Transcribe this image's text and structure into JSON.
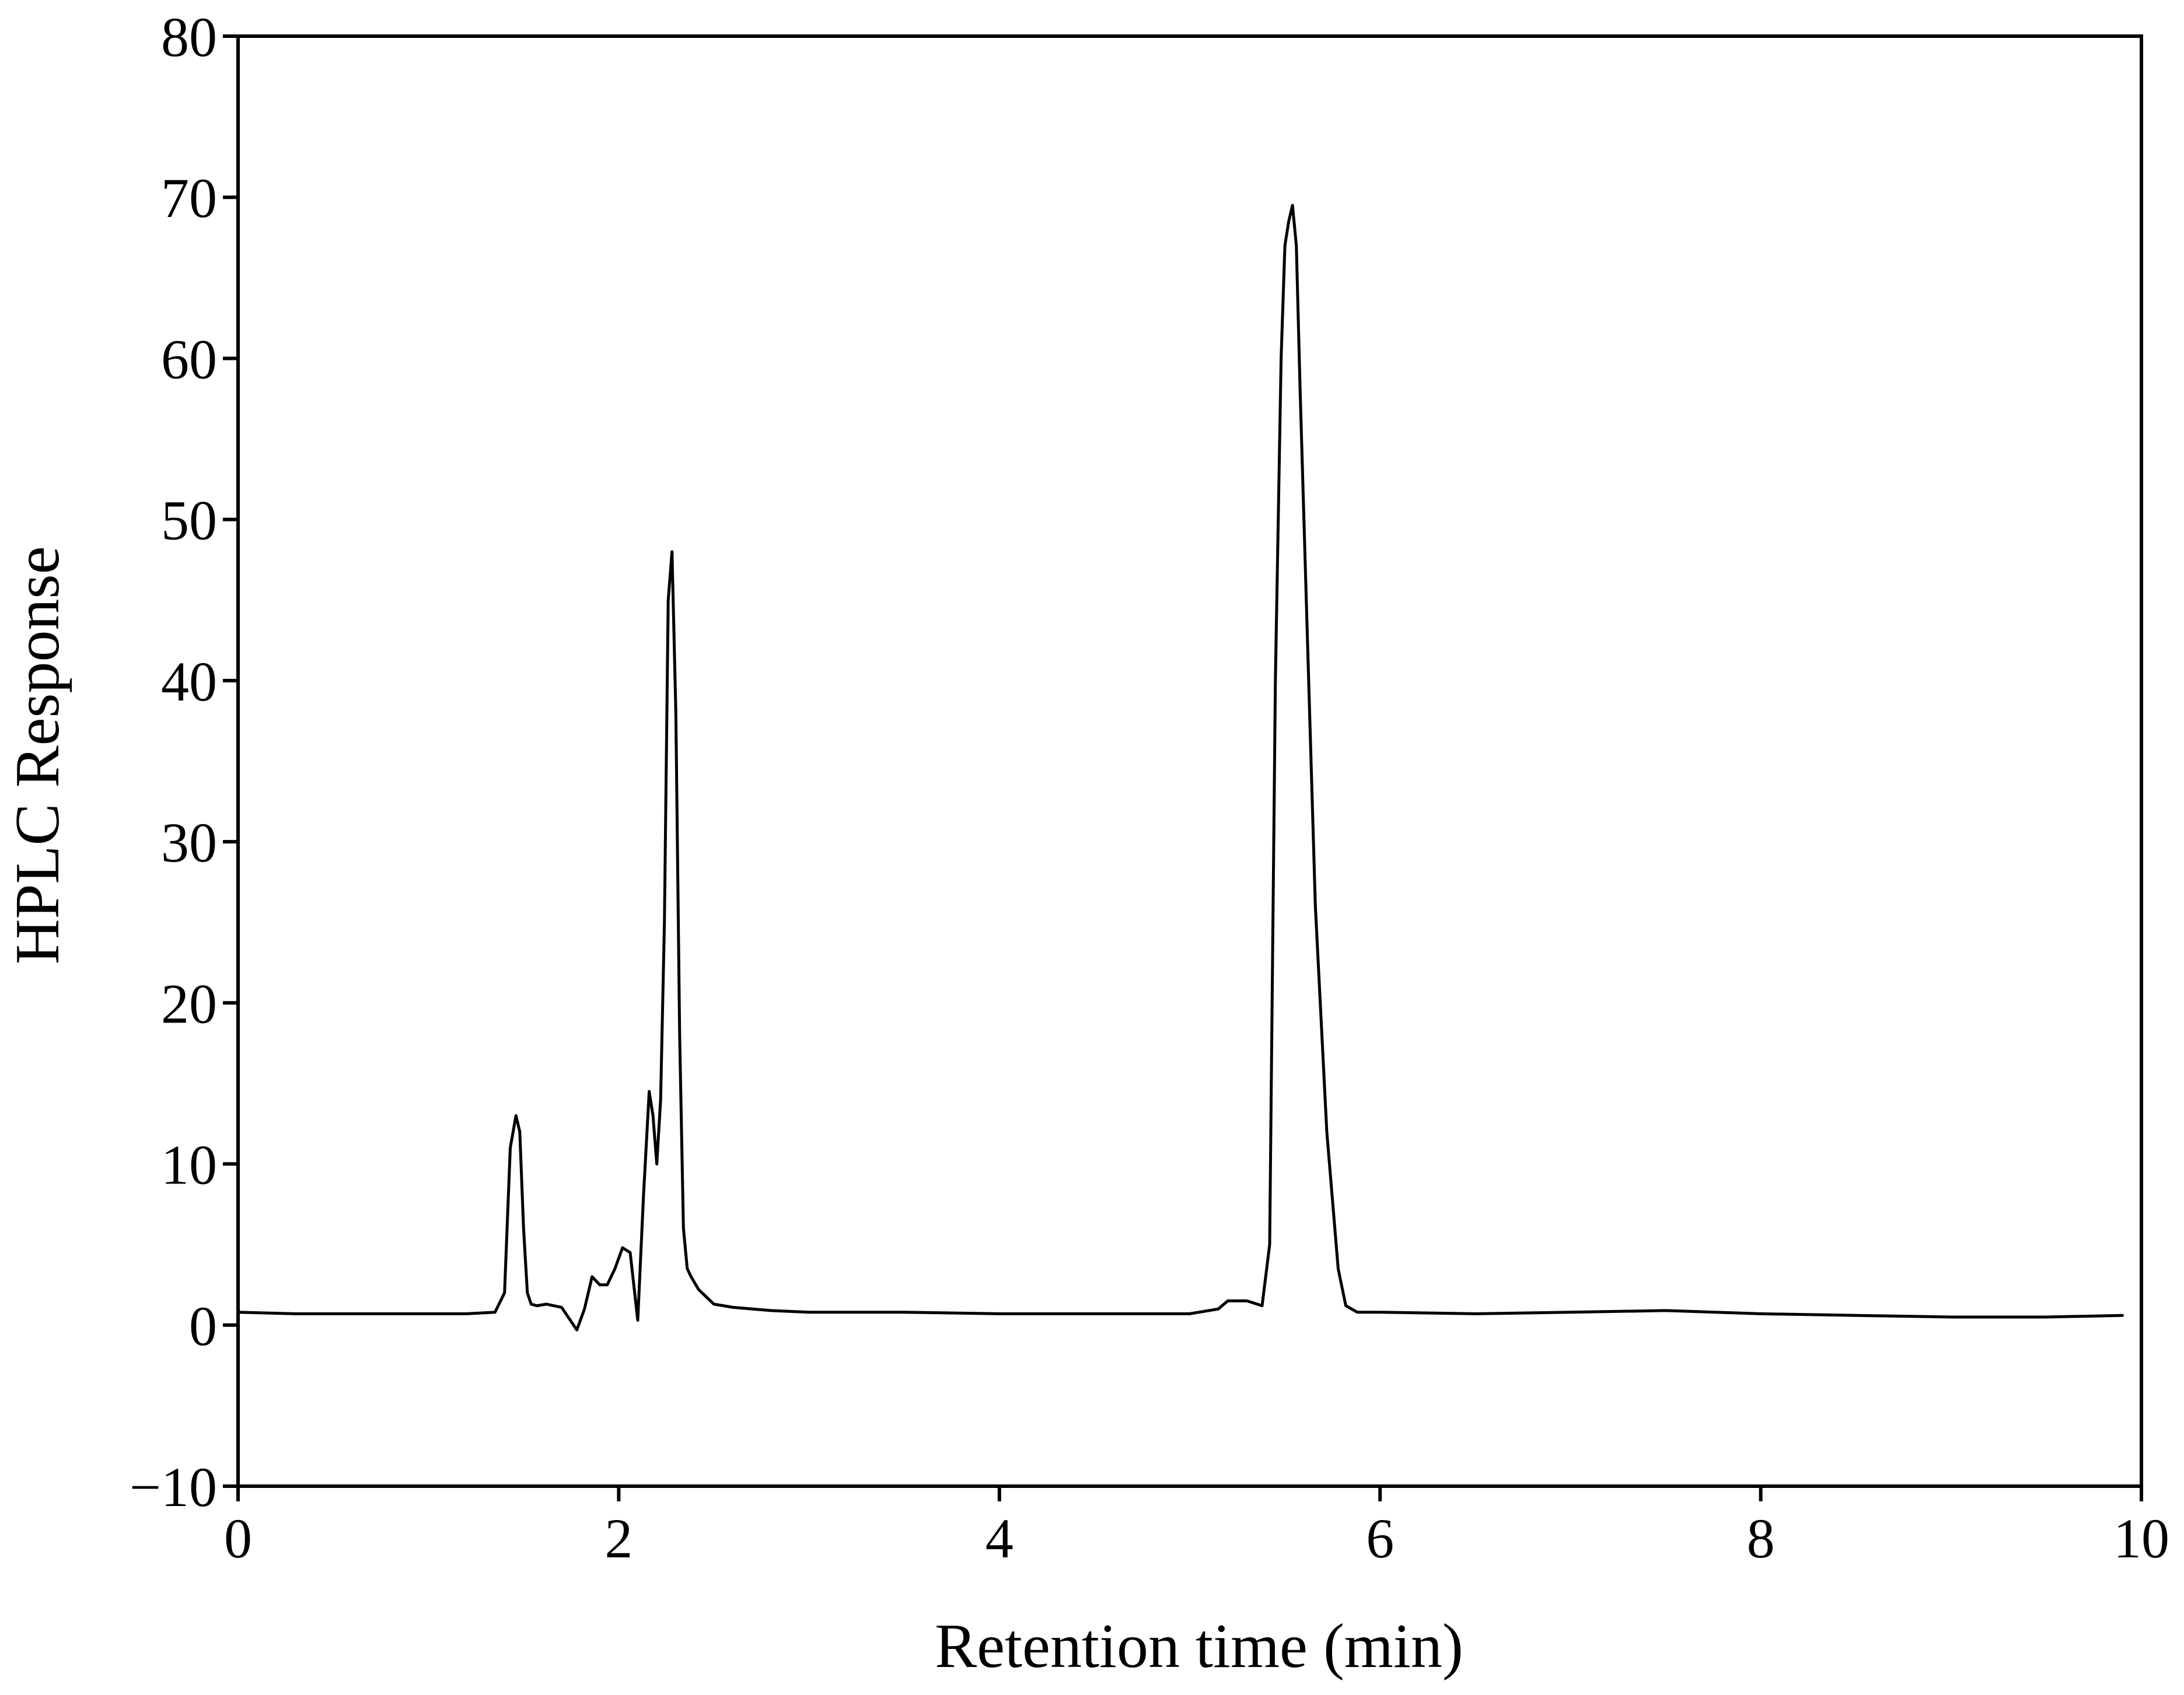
{
  "chart_data": {
    "type": "line",
    "title": "",
    "xlabel": "Retention time (min)",
    "ylabel": "HPLC Response",
    "xlim": [
      0,
      10
    ],
    "ylim": [
      -10,
      80
    ],
    "x_ticks": [
      0,
      2,
      4,
      6,
      8,
      10
    ],
    "x_tick_labels": [
      "0",
      "2",
      "4",
      "6",
      "8",
      "10"
    ],
    "y_ticks": [
      -10,
      0,
      10,
      20,
      30,
      40,
      50,
      60,
      70,
      80
    ],
    "y_tick_labels": [
      "−10",
      "0",
      "10",
      "20",
      "30",
      "40",
      "50",
      "60",
      "70",
      "80"
    ],
    "grid": false,
    "legend": "none",
    "series": [
      {
        "x": [
          0.0,
          0.3,
          0.6,
          0.9,
          1.2,
          1.35,
          1.4,
          1.43,
          1.46,
          1.48,
          1.5,
          1.52,
          1.54,
          1.57,
          1.62,
          1.7,
          1.78,
          1.82,
          1.86,
          1.9,
          1.94,
          1.98,
          2.02,
          2.06,
          2.1,
          2.13,
          2.16,
          2.18,
          2.2,
          2.22,
          2.24,
          2.26,
          2.28,
          2.3,
          2.32,
          2.34,
          2.36,
          2.38,
          2.42,
          2.5,
          2.6,
          2.8,
          3.0,
          3.5,
          4.0,
          4.5,
          5.0,
          5.15,
          5.2,
          5.3,
          5.38,
          5.42,
          5.45,
          5.48,
          5.5,
          5.52,
          5.54,
          5.56,
          5.58,
          5.62,
          5.66,
          5.72,
          5.78,
          5.82,
          5.88,
          6.0,
          6.5,
          7.0,
          7.5,
          8.0,
          8.5,
          9.0,
          9.5,
          9.9
        ],
        "y": [
          0.8,
          0.7,
          0.7,
          0.7,
          0.7,
          0.8,
          2.0,
          11.0,
          13.0,
          12.0,
          6.0,
          2.0,
          1.3,
          1.2,
          1.3,
          1.1,
          -0.3,
          1.0,
          3.0,
          2.5,
          2.5,
          3.5,
          4.8,
          4.5,
          0.3,
          8.0,
          14.5,
          13.0,
          10.0,
          14.0,
          25.0,
          45.0,
          48.0,
          38.0,
          18.0,
          6.0,
          3.5,
          3.0,
          2.2,
          1.3,
          1.1,
          0.9,
          0.8,
          0.8,
          0.7,
          0.7,
          0.7,
          1.0,
          1.5,
          1.5,
          1.2,
          5.0,
          40.0,
          60.0,
          67.0,
          68.5,
          69.5,
          67.0,
          58.0,
          42.0,
          26.0,
          12.0,
          3.5,
          1.2,
          0.8,
          0.8,
          0.7,
          0.8,
          0.9,
          0.7,
          0.6,
          0.5,
          0.5,
          0.6
        ]
      }
    ]
  }
}
